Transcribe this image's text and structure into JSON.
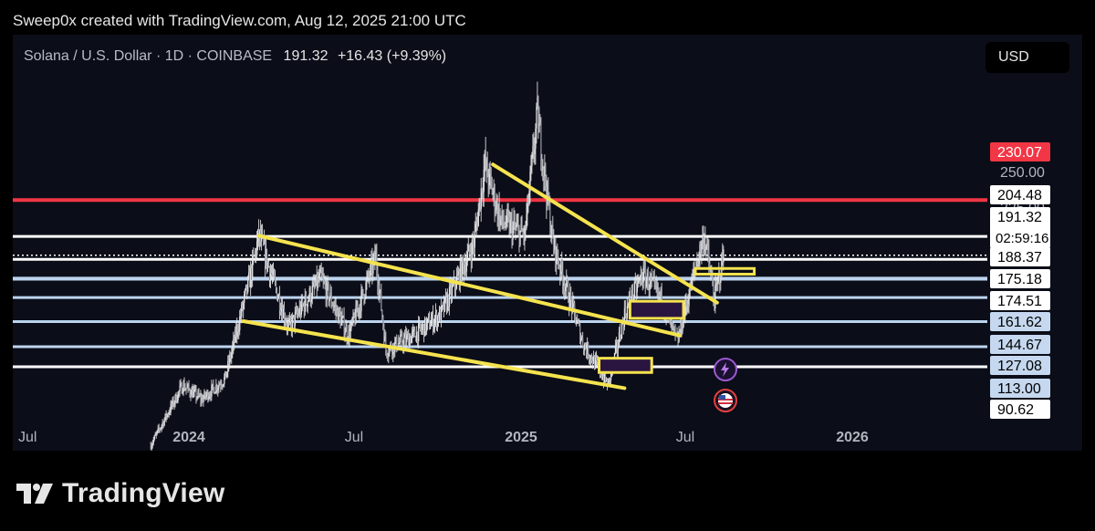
{
  "header": {
    "credit": "Sweep0x created with TradingView.com, Aug 12, 2025 21:00 UTC"
  },
  "symbol": {
    "description": "Solana / U.S. Dollar · 1D · COINBASE",
    "last_price": "191.32",
    "change": "+16.43 (+9.39%)"
  },
  "toolbar": {
    "currency_label": "USD"
  },
  "footer": {
    "logo_text": "TradingView"
  },
  "colors": {
    "background": "#0b0d18",
    "candles": "#e6e6e6",
    "resistance_red": "#f23645",
    "white_level": "#ffffff",
    "blue_level": "#bcd4ef",
    "trendline_yellow": "#f5e34f",
    "box_fill": "#2a1540"
  },
  "icons": [
    "tradingview-logo-icon",
    "lightning-event-icon",
    "us-flag-event-icon"
  ],
  "chart_data": {
    "type": "candlestick",
    "title": "Solana / U.S. Dollar · 1D · COINBASE",
    "ylabel": "",
    "xlabel": "",
    "ylim": [
      80,
      330
    ],
    "x_tick_labels": [
      "Jul",
      "2024",
      "Jul",
      "2025",
      "Jul",
      "2026"
    ],
    "y_tick_labels": [
      "250.00",
      "225.00"
    ],
    "last_price": 191.32,
    "countdown": "02:59:16",
    "horizontal_levels": [
      {
        "value": 230.07,
        "label": "230.07",
        "color": "red",
        "label_style": "red"
      },
      {
        "value": 204.48,
        "label": "204.48",
        "color": "white",
        "label_style": "white"
      },
      {
        "value": 191.32,
        "label": "191.32",
        "color": "white",
        "label_style": "white",
        "dotted": true
      },
      {
        "value": 188.37,
        "label": "188.37",
        "color": "white",
        "label_style": "white"
      },
      {
        "value": 175.18,
        "label": "175.18",
        "color": "light-blue",
        "label_style": "white"
      },
      {
        "value": 174.51,
        "label": "174.51",
        "color": "light-blue",
        "label_style": "white"
      },
      {
        "value": 161.62,
        "label": "161.62",
        "color": "light-blue",
        "label_style": "blue"
      },
      {
        "value": 144.67,
        "label": "144.67",
        "color": "light-blue",
        "label_style": "blue"
      },
      {
        "value": 127.08,
        "label": "127.08",
        "color": "light-blue",
        "label_style": "blue"
      },
      {
        "value": 113.0,
        "label": "113.00",
        "color": "white",
        "label_style": "blue"
      },
      {
        "value": 90.62,
        "label": "90.62",
        "color": "white",
        "label_style": "white"
      }
    ],
    "price_path": [
      [
        "2023-11-20",
        58
      ],
      [
        "2023-12-25",
        100
      ],
      [
        "2024-01-15",
        90
      ],
      [
        "2024-02-10",
        105
      ],
      [
        "2024-03-10",
        180
      ],
      [
        "2024-03-18",
        205
      ],
      [
        "2024-04-20",
        140
      ],
      [
        "2024-05-25",
        175
      ],
      [
        "2024-06-25",
        135
      ],
      [
        "2024-07-25",
        190
      ],
      [
        "2024-08-05",
        125
      ],
      [
        "2024-09-05",
        135
      ],
      [
        "2024-10-05",
        150
      ],
      [
        "2024-11-10",
        200
      ],
      [
        "2024-11-22",
        255
      ],
      [
        "2024-12-10",
        215
      ],
      [
        "2025-01-05",
        205
      ],
      [
        "2025-01-19",
        290
      ],
      [
        "2025-02-05",
        200
      ],
      [
        "2025-03-10",
        130
      ],
      [
        "2025-04-07",
        100
      ],
      [
        "2025-04-25",
        150
      ],
      [
        "2025-05-15",
        178
      ],
      [
        "2025-06-05",
        160
      ],
      [
        "2025-06-22",
        130
      ],
      [
        "2025-07-15",
        190
      ],
      [
        "2025-07-22",
        205
      ],
      [
        "2025-08-02",
        160
      ],
      [
        "2025-08-12",
        191.32
      ]
    ],
    "trendlines": [
      {
        "from": [
          "2024-03-18",
          205
        ],
        "to": [
          "2025-06-25",
          135
        ]
      },
      {
        "from": [
          "2024-03-01",
          145
        ],
        "to": [
          "2025-04-25",
          98
        ]
      },
      {
        "from": [
          "2024-12-01",
          255
        ],
        "to": [
          "2025-08-05",
          158
        ]
      }
    ],
    "boxes": [
      {
        "x0": "2025-05-01",
        "x1": "2025-06-29",
        "y0": 147,
        "y1": 159,
        "fill": true
      },
      {
        "x0": "2025-03-28",
        "x1": "2025-05-25",
        "y0": 109,
        "y1": 119,
        "fill": true
      },
      {
        "x0": "2025-07-12",
        "x1": "2025-09-15",
        "y0": 178,
        "y1": 182,
        "fill": false
      }
    ]
  }
}
